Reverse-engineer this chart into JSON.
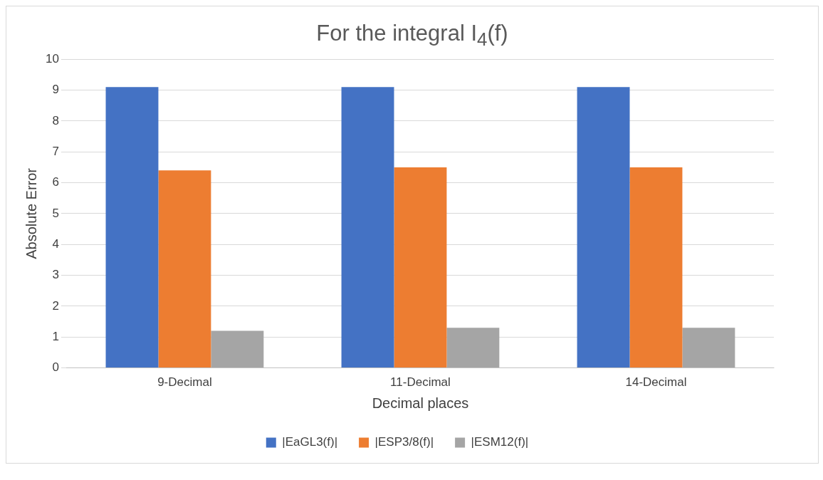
{
  "chart_data": {
    "type": "bar",
    "title": "For the integral I$_{4}$(f)",
    "xlabel": "Decimal places",
    "ylabel": "Absolute Error",
    "categories": [
      "9-Decimal",
      "11-Decimal",
      "14-Decimal"
    ],
    "series": [
      {
        "name": "|EaGL3(f)|",
        "color": "#4472c4",
        "values": [
          9.1,
          9.1,
          9.1
        ]
      },
      {
        "name": "|ESP3/8(f)|",
        "color": "#ed7d31",
        "values": [
          6.4,
          6.5,
          6.5
        ]
      },
      {
        "name": "|ESM12(f)|",
        "color": "#a5a5a5",
        "values": [
          1.2,
          1.3,
          1.3
        ]
      }
    ],
    "ylim": [
      0,
      10
    ],
    "yticks": [
      0,
      1,
      2,
      3,
      4,
      5,
      6,
      7,
      8,
      9,
      10
    ],
    "grid": "y",
    "legend": "bottom"
  }
}
